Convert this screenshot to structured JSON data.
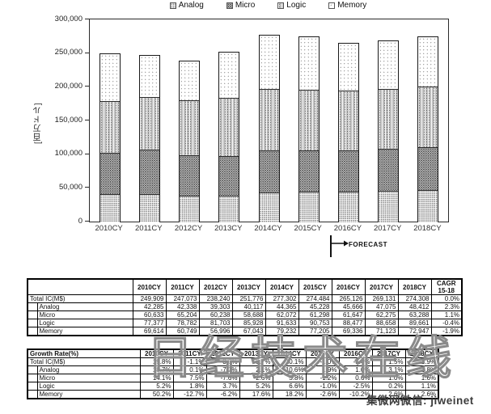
{
  "chart_data": {
    "type": "bar",
    "stacked": true,
    "title": "",
    "ylabel": "[百万ドル]",
    "xlabel": "",
    "ylim": [
      0,
      300000
    ],
    "y_tick_step": 50000,
    "y_ticks": [
      "300,000",
      "250,000",
      "200,000",
      "150,000",
      "100,000",
      "50,000",
      "0"
    ],
    "grid": false,
    "legend_position": "top",
    "categories": [
      "2010CY",
      "2011CY",
      "2012CY",
      "2013CY",
      "2014CY",
      "2015CY",
      "2016CY",
      "2017CY",
      "2018CY"
    ],
    "series": [
      {
        "name": "Analog",
        "values": [
          42285,
          42338,
          39303,
          40117,
          44365,
          45228,
          45666,
          47075,
          48412
        ]
      },
      {
        "name": "Micro",
        "values": [
          60633,
          65204,
          60238,
          58688,
          62072,
          61298,
          61647,
          62275,
          63288
        ]
      },
      {
        "name": "Logic",
        "values": [
          77377,
          78782,
          81703,
          85928,
          91633,
          90753,
          88477,
          88658,
          89661
        ]
      },
      {
        "name": "Memory",
        "values": [
          69614,
          60749,
          56996,
          67043,
          79232,
          77205,
          69336,
          71123,
          72947
        ]
      }
    ],
    "totals": [
      249909,
      247073,
      238240,
      251776,
      277302,
      274484,
      265126,
      269131,
      274308
    ],
    "annotation": "FORECAST",
    "forecast_from": "2016CY"
  },
  "value_table": {
    "header": [
      "",
      "2010CY",
      "2011CY",
      "2012CY",
      "2013CY",
      "2014CY",
      "2015CY",
      "2016CY",
      "2017CY",
      "2018CY",
      "CAGR\n15-18"
    ],
    "rows": [
      {
        "label": "Total IC(M$)",
        "indent": false,
        "values": [
          "249,909",
          "247,073",
          "238,240",
          "251,776",
          "277,302",
          "274,484",
          "265,126",
          "269,131",
          "274,308",
          "0.0%"
        ]
      },
      {
        "label": "Analog",
        "indent": true,
        "values": [
          "42,285",
          "42,338",
          "39,303",
          "40,117",
          "44,365",
          "45,228",
          "45,666",
          "47,075",
          "48,412",
          "2.3%"
        ]
      },
      {
        "label": "Micro",
        "indent": true,
        "values": [
          "60,633",
          "65,204",
          "60,238",
          "58,688",
          "62,072",
          "61,298",
          "61,647",
          "62,275",
          "63,288",
          "1.1%"
        ]
      },
      {
        "label": "Logic",
        "indent": true,
        "values": [
          "77,377",
          "78,782",
          "81,703",
          "85,928",
          "91,633",
          "90,753",
          "88,477",
          "88,658",
          "89,661",
          "-0.4%"
        ]
      },
      {
        "label": "Memory",
        "indent": true,
        "values": [
          "69,614",
          "60,749",
          "56,996",
          "67,043",
          "79,232",
          "77,205",
          "69,336",
          "71,123",
          "72,947",
          "-1.9%"
        ]
      }
    ]
  },
  "growth_table": {
    "header": [
      "Growth Rate(%)",
      "2010CY",
      "2011CY",
      "2012CY",
      "2013CY",
      "2014CY",
      "2015CY",
      "2016CY",
      "2017CY",
      "2018CY"
    ],
    "rows": [
      {
        "label": "Total IC(M$)",
        "indent": false,
        "values": [
          "19.8%",
          "-1.1%",
          "-3.6%",
          "5.7%",
          "10.1%",
          "-1.0%",
          "-3.4%",
          "1.5%",
          "1.9%"
        ]
      },
      {
        "label": "Analog",
        "indent": true,
        "values": [
          "18.7%",
          "0.1%",
          "-7.2%",
          "2.1%",
          "10.6%",
          "1.9%",
          "1.0%",
          "3.1%",
          "2.8%"
        ]
      },
      {
        "label": "Micro",
        "indent": true,
        "values": [
          "14.1%",
          "7.5%",
          "-7.6%",
          "-2.6%",
          "5.8%",
          "-1.2%",
          "0.6%",
          "1.0%",
          "1.6%"
        ]
      },
      {
        "label": "Logic",
        "indent": true,
        "values": [
          "5.2%",
          "1.8%",
          "3.7%",
          "5.2%",
          "6.6%",
          "-1.0%",
          "-2.5%",
          "0.2%",
          "1.1%"
        ]
      },
      {
        "label": "Memory",
        "indent": true,
        "values": [
          "50.2%",
          "-12.7%",
          "-6.2%",
          "17.6%",
          "18.2%",
          "-2.6%",
          "-10.2%",
          "2.6%",
          "2.6%"
        ]
      }
    ]
  },
  "watermarks": {
    "center": "日经技术在线",
    "bottom_right": "集微网微信: jiweinet"
  }
}
